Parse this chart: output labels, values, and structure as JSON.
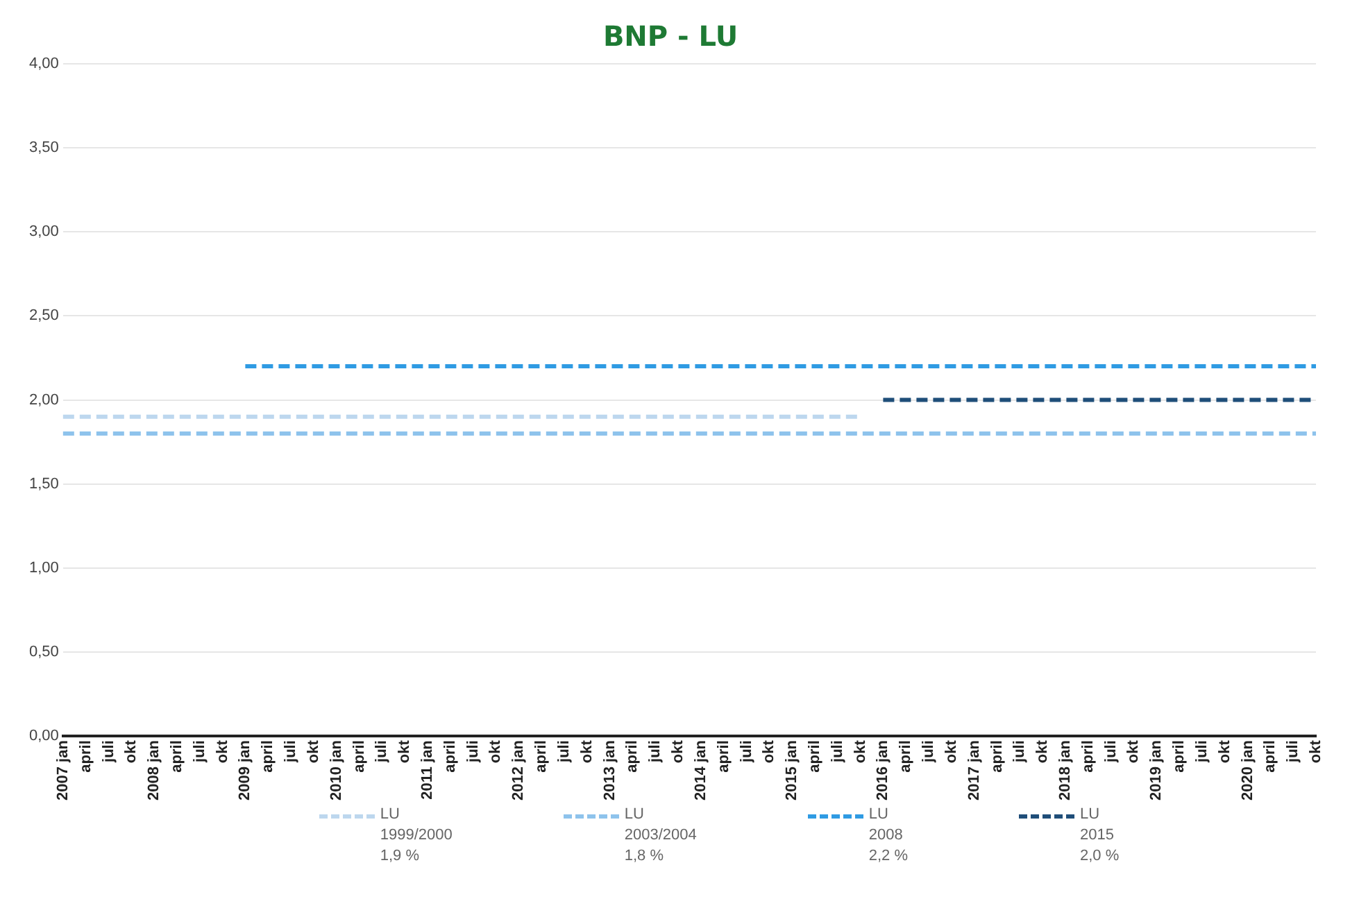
{
  "chart_data": {
    "type": "line",
    "title": "BNP - LU",
    "categories": [
      "2007 jan",
      "april",
      "juli",
      "okt",
      "2008 jan",
      "april",
      "juli",
      "okt",
      "2009 jan",
      "april",
      "juli",
      "okt",
      "2010 jan",
      "april",
      "juli",
      "okt",
      "2011 jan",
      "april",
      "juli",
      "okt",
      "2012 jan",
      "april",
      "juli",
      "okt",
      "2013 jan",
      "april",
      "juli",
      "okt",
      "2014 jan",
      "april",
      "juli",
      "okt",
      "2015 jan",
      "april",
      "juli",
      "okt",
      "2016 jan",
      "april",
      "juli",
      "okt",
      "2017 jan",
      "april",
      "juli",
      "okt",
      "2018 jan",
      "april",
      "juli",
      "okt",
      "2019 jan",
      "april",
      "juli",
      "okt",
      "2020 jan",
      "april",
      "juli",
      "okt"
    ],
    "series": [
      {
        "name": "LU\n1999/2000\n1,9 %",
        "color": "#bdd7ee",
        "values": [
          1.9,
          1.9,
          1.9,
          1.9,
          1.9,
          1.9,
          1.9,
          1.9,
          1.9,
          1.9,
          1.9,
          1.9,
          1.9,
          1.9,
          1.9,
          1.9,
          1.9,
          1.9,
          1.9,
          1.9,
          1.9,
          1.9,
          1.9,
          1.9,
          1.9,
          1.9,
          1.9,
          1.9,
          1.9,
          1.9,
          1.9,
          1.9,
          1.9,
          1.9,
          1.9,
          1.9,
          null,
          null,
          null,
          null,
          null,
          null,
          null,
          null,
          null,
          null,
          null,
          null,
          null,
          null,
          null,
          null,
          null,
          null,
          null,
          null
        ]
      },
      {
        "name": "LU\n2003/2004\n1,8 %",
        "color": "#8ec3ec",
        "values": [
          1.8,
          1.8,
          1.8,
          1.8,
          1.8,
          1.8,
          1.8,
          1.8,
          1.8,
          1.8,
          1.8,
          1.8,
          1.8,
          1.8,
          1.8,
          1.8,
          1.8,
          1.8,
          1.8,
          1.8,
          1.8,
          1.8,
          1.8,
          1.8,
          1.8,
          1.8,
          1.8,
          1.8,
          1.8,
          1.8,
          1.8,
          1.8,
          1.8,
          1.8,
          1.8,
          1.8,
          1.8,
          1.8,
          1.8,
          1.8,
          1.8,
          1.8,
          1.8,
          1.8,
          1.8,
          1.8,
          1.8,
          1.8,
          1.8,
          1.8,
          1.8,
          1.8,
          1.8,
          1.8,
          1.8,
          1.8
        ]
      },
      {
        "name": "LU\n2008\n2,2 %",
        "color": "#2f9be3",
        "values": [
          null,
          null,
          null,
          null,
          null,
          null,
          null,
          null,
          2.2,
          2.2,
          2.2,
          2.2,
          2.2,
          2.2,
          2.2,
          2.2,
          2.2,
          2.2,
          2.2,
          2.2,
          2.2,
          2.2,
          2.2,
          2.2,
          2.2,
          2.2,
          2.2,
          2.2,
          2.2,
          2.2,
          2.2,
          2.2,
          2.2,
          2.2,
          2.2,
          2.2,
          2.2,
          2.2,
          2.2,
          2.2,
          2.2,
          2.2,
          2.2,
          2.2,
          2.2,
          2.2,
          2.2,
          2.2,
          2.2,
          2.2,
          2.2,
          2.2,
          2.2,
          2.2,
          2.2,
          2.2
        ]
      },
      {
        "name": "LU\n2015\n2,0 %",
        "color": "#1f4e79",
        "values": [
          null,
          null,
          null,
          null,
          null,
          null,
          null,
          null,
          null,
          null,
          null,
          null,
          null,
          null,
          null,
          null,
          null,
          null,
          null,
          null,
          null,
          null,
          null,
          null,
          null,
          null,
          null,
          null,
          null,
          null,
          null,
          null,
          null,
          null,
          null,
          null,
          2.0,
          2.0,
          2.0,
          2.0,
          2.0,
          2.0,
          2.0,
          2.0,
          2.0,
          2.0,
          2.0,
          2.0,
          2.0,
          2.0,
          2.0,
          2.0,
          2.0,
          2.0,
          2.0,
          2.0
        ]
      }
    ],
    "ylim": [
      0,
      4
    ],
    "yticks": [
      {
        "value": 0,
        "label": "0,00"
      },
      {
        "value": 0.5,
        "label": "0,50"
      },
      {
        "value": 1,
        "label": "1,00"
      },
      {
        "value": 1.5,
        "label": "1,50"
      },
      {
        "value": 2,
        "label": "2,00"
      },
      {
        "value": 2.5,
        "label": "2,50"
      },
      {
        "value": 3,
        "label": "3,00"
      },
      {
        "value": 3.5,
        "label": "3,50"
      },
      {
        "value": 4,
        "label": "4,00"
      }
    ],
    "grid": "y",
    "legend": "bottom",
    "line_style": "dashed",
    "marker": "none"
  }
}
